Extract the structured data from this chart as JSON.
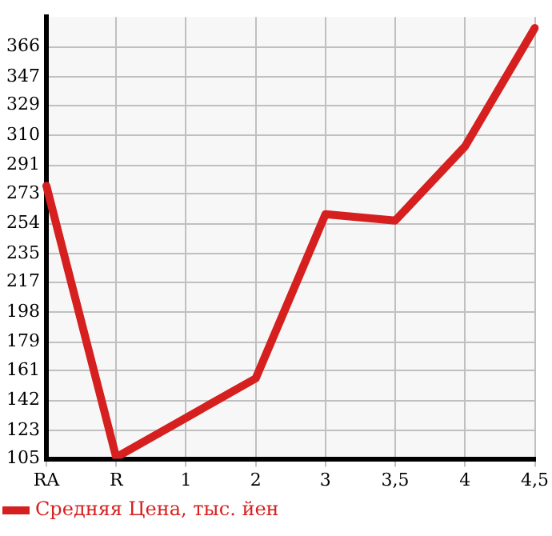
{
  "chart_data": {
    "type": "line",
    "categories": [
      "RA",
      "R",
      "1",
      "2",
      "3",
      "3,5",
      "4",
      "4,5"
    ],
    "series": [
      {
        "name": "Средняя Цена, тыс. йен",
        "color": "#d61f1f",
        "values": [
          278,
          106,
          131,
          156,
          260,
          256,
          303,
          378
        ]
      }
    ],
    "ylim": [
      105,
      385
    ],
    "yticks": [
      105,
      123,
      142,
      161,
      179,
      198,
      217,
      235,
      254,
      273,
      291,
      310,
      329,
      347,
      366
    ],
    "grid": true,
    "legend": "bottom left",
    "marker": "none",
    "line_style": "solid"
  }
}
